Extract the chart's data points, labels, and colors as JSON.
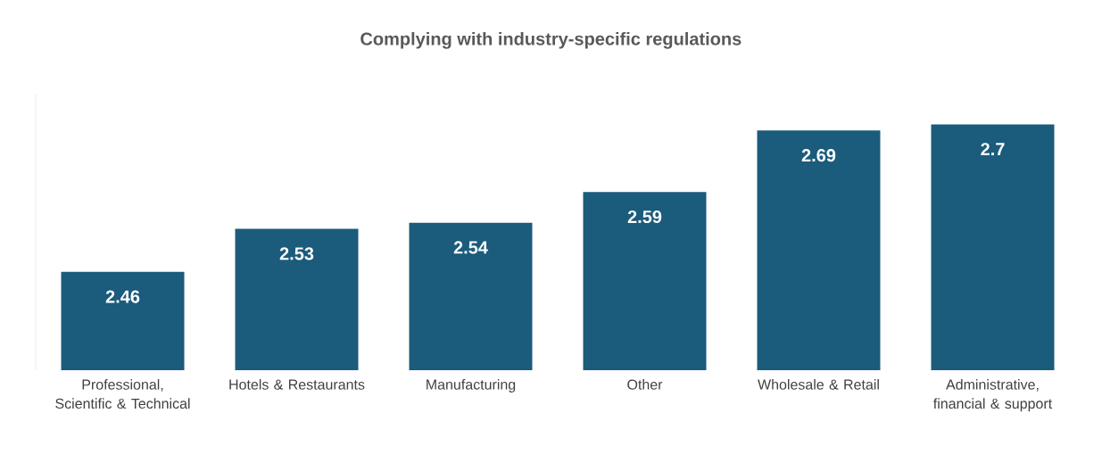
{
  "chart_data": {
    "type": "bar",
    "title": "Complying with industry-specific regulations",
    "categories": [
      "Professional, Scientific & Technical",
      "Hotels & Restaurants",
      "Manufacturing",
      "Other",
      "Wholesale & Retail",
      "Administrative, financial & support"
    ],
    "values": [
      2.46,
      2.53,
      2.54,
      2.59,
      2.69,
      2.7
    ],
    "color": "#1b5b7c",
    "ylim": [
      2.3,
      2.75
    ],
    "data_labels": true,
    "tick_labels": "x"
  }
}
